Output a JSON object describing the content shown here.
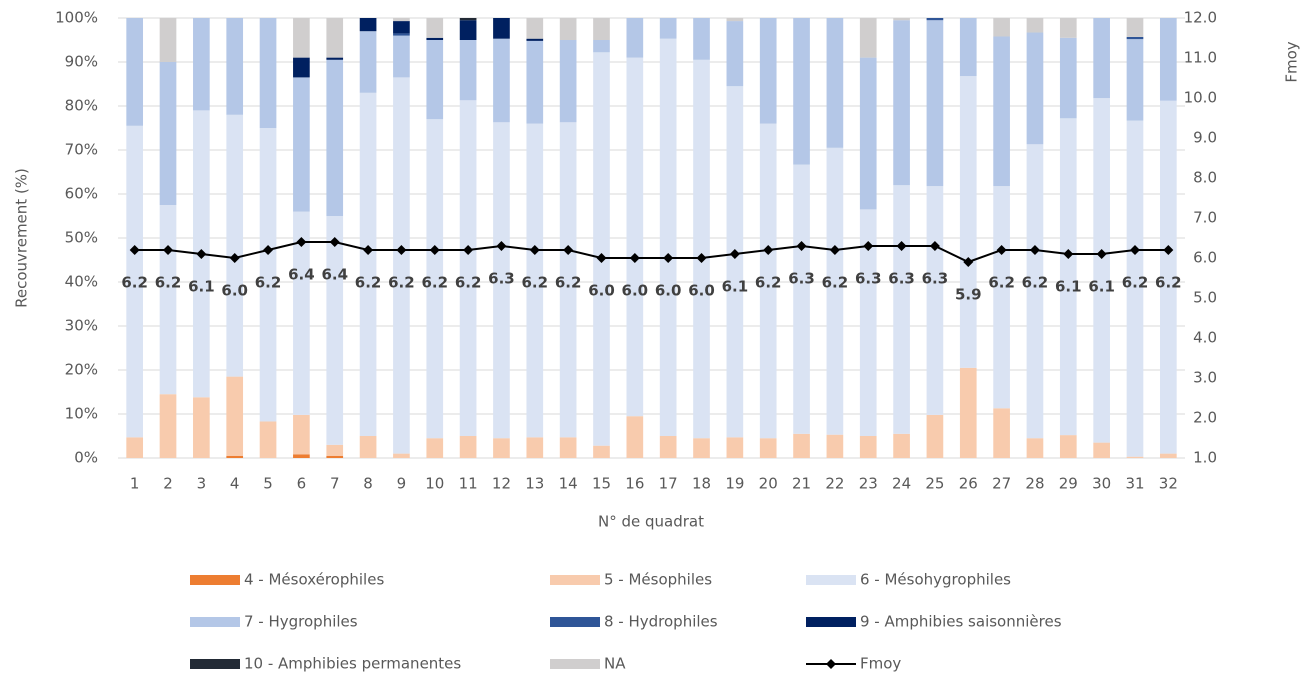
{
  "chart_data": {
    "type": "bar",
    "stacked": true,
    "x_label": "N° de quadrat",
    "y_label": "Recouvrement (%)",
    "y2_label": "Fmoy",
    "categories": [
      "1",
      "2",
      "3",
      "4",
      "5",
      "6",
      "7",
      "8",
      "9",
      "10",
      "11",
      "12",
      "13",
      "14",
      "15",
      "16",
      "17",
      "18",
      "19",
      "20",
      "21",
      "22",
      "23",
      "24",
      "25",
      "26",
      "27",
      "28",
      "29",
      "30",
      "31",
      "32"
    ],
    "series": [
      {
        "name": "4 - Mésoxérophiles",
        "color": "#ed7d31",
        "values": [
          0,
          0,
          0,
          0.5,
          0,
          0.8,
          0.5,
          0,
          0,
          0,
          0,
          0,
          0,
          0,
          0,
          0,
          0,
          0,
          0,
          0,
          0,
          0,
          0,
          0,
          0,
          0,
          0,
          0,
          0,
          0,
          0,
          0
        ]
      },
      {
        "name": "5 - Mésophiles",
        "color": "#f8cbad",
        "values": [
          4.7,
          14.5,
          13.8,
          18,
          8.3,
          9,
          2.5,
          5,
          1,
          4.5,
          5,
          4.5,
          4.7,
          4.7,
          2.8,
          9.5,
          5,
          4.5,
          4.7,
          4.5,
          5.5,
          5.3,
          5,
          5.5,
          9.8,
          20.5,
          11.3,
          4.5,
          5.2,
          3.5,
          0.3,
          1
        ]
      },
      {
        "name": "6 - Mésohygrophiles",
        "color": "#dae3f3",
        "values": [
          70.8,
          43,
          65.2,
          59.5,
          66.7,
          46.2,
          52,
          78,
          85.5,
          72.5,
          76.3,
          71.8,
          71.3,
          71.6,
          89.4,
          81.5,
          90.3,
          86,
          79.8,
          71.5,
          61.2,
          65.2,
          51.5,
          56.5,
          52,
          66.3,
          50.5,
          66.8,
          72,
          78.3,
          76.4,
          80.2
        ]
      },
      {
        "name": "7 - Hygrophiles",
        "color": "#b4c7e7",
        "values": [
          24.5,
          32.5,
          21,
          22,
          25,
          30.5,
          35.5,
          14,
          9.5,
          18,
          13.7,
          19,
          18.8,
          18.7,
          2.8,
          9,
          4.7,
          9.5,
          14.8,
          24,
          33.3,
          29.5,
          34.5,
          37.5,
          37.7,
          13.2,
          34,
          25.4,
          18.3,
          18.2,
          18.5,
          18.8
        ]
      },
      {
        "name": "8 - Hydrophiles",
        "color": "#2f5597",
        "values": [
          0,
          0,
          0,
          0,
          0,
          0,
          0,
          0,
          0.5,
          0,
          0,
          0,
          0,
          0,
          0,
          0,
          0,
          0,
          0,
          0,
          0,
          0,
          0,
          0,
          0.5,
          0,
          0,
          0,
          0,
          0,
          0.5,
          0
        ]
      },
      {
        "name": "9 - Amphibies saisonnières",
        "color": "#002060",
        "values": [
          0,
          0,
          0,
          0,
          0,
          4.5,
          0.5,
          3,
          2.8,
          0.5,
          4.5,
          4.7,
          0.5,
          0,
          0,
          0,
          0,
          0,
          0,
          0,
          0,
          0,
          0,
          0,
          0,
          0,
          0,
          0,
          0,
          0,
          0,
          0
        ]
      },
      {
        "name": "10 - Amphibies permanentes",
        "color": "#222a35",
        "values": [
          0,
          0,
          0,
          0,
          0,
          0,
          0,
          0,
          0,
          0,
          0.5,
          0,
          0,
          0,
          0,
          0,
          0,
          0,
          0,
          0,
          0,
          0,
          0,
          0,
          0,
          0,
          0,
          0,
          0,
          0,
          0,
          0
        ]
      },
      {
        "name": "NA",
        "color": "#d0cece",
        "values": [
          0,
          10,
          0,
          0,
          0,
          9,
          9,
          0,
          0.7,
          4.5,
          0,
          0,
          4.7,
          5,
          5,
          0,
          0,
          0,
          0.7,
          0,
          0,
          0,
          9,
          0.5,
          0,
          0,
          4.2,
          3.3,
          4.5,
          0,
          4.3,
          0
        ]
      },
      {
        "name": "Fmoy",
        "color": "#000000",
        "type": "line",
        "axis": "y2",
        "values": [
          6.2,
          6.2,
          6.1,
          6.0,
          6.2,
          6.4,
          6.4,
          6.2,
          6.2,
          6.2,
          6.2,
          6.3,
          6.2,
          6.2,
          6.0,
          6.0,
          6.0,
          6.0,
          6.1,
          6.2,
          6.3,
          6.2,
          6.3,
          6.3,
          6.3,
          5.9,
          6.2,
          6.2,
          6.1,
          6.1,
          6.2,
          6.2
        ],
        "value_labels": [
          "6.2",
          "6.2",
          "6.1",
          "6.0",
          "6.2",
          "6.4",
          "6.4",
          "6.2",
          "6.2",
          "6.2",
          "6.2",
          "6.3",
          "6.2",
          "6.2",
          "6.0",
          "6.0",
          "6.0",
          "6.0",
          "6.1",
          "6.2",
          "6.3",
          "6.2",
          "6.3",
          "6.3",
          "6.3",
          "5.9",
          "6.2",
          "6.2",
          "6.1",
          "6.1",
          "6.2",
          "6.2"
        ]
      }
    ],
    "ylim": [
      0,
      100
    ],
    "yticks": [
      {
        "value": 0,
        "label": "0%"
      },
      {
        "value": 10,
        "label": "10%"
      },
      {
        "value": 20,
        "label": "20%"
      },
      {
        "value": 30,
        "label": "30%"
      },
      {
        "value": 40,
        "label": "40%"
      },
      {
        "value": 50,
        "label": "50%"
      },
      {
        "value": 60,
        "label": "60%"
      },
      {
        "value": 70,
        "label": "70%"
      },
      {
        "value": 80,
        "label": "80%"
      },
      {
        "value": 90,
        "label": "90%"
      },
      {
        "value": 100,
        "label": "100%"
      }
    ],
    "y2lim": [
      1,
      12
    ],
    "y2ticks": [
      {
        "value": 1,
        "label": "1.0"
      },
      {
        "value": 2,
        "label": "2.0"
      },
      {
        "value": 3,
        "label": "3.0"
      },
      {
        "value": 4,
        "label": "4.0"
      },
      {
        "value": 5,
        "label": "5.0"
      },
      {
        "value": 6,
        "label": "6.0"
      },
      {
        "value": 7,
        "label": "7.0"
      },
      {
        "value": 8,
        "label": "8.0"
      },
      {
        "value": 9,
        "label": "9.0"
      },
      {
        "value": 10,
        "label": "10.0"
      },
      {
        "value": 11,
        "label": "11.0"
      },
      {
        "value": 12,
        "label": "12.0"
      }
    ],
    "grid": true
  }
}
